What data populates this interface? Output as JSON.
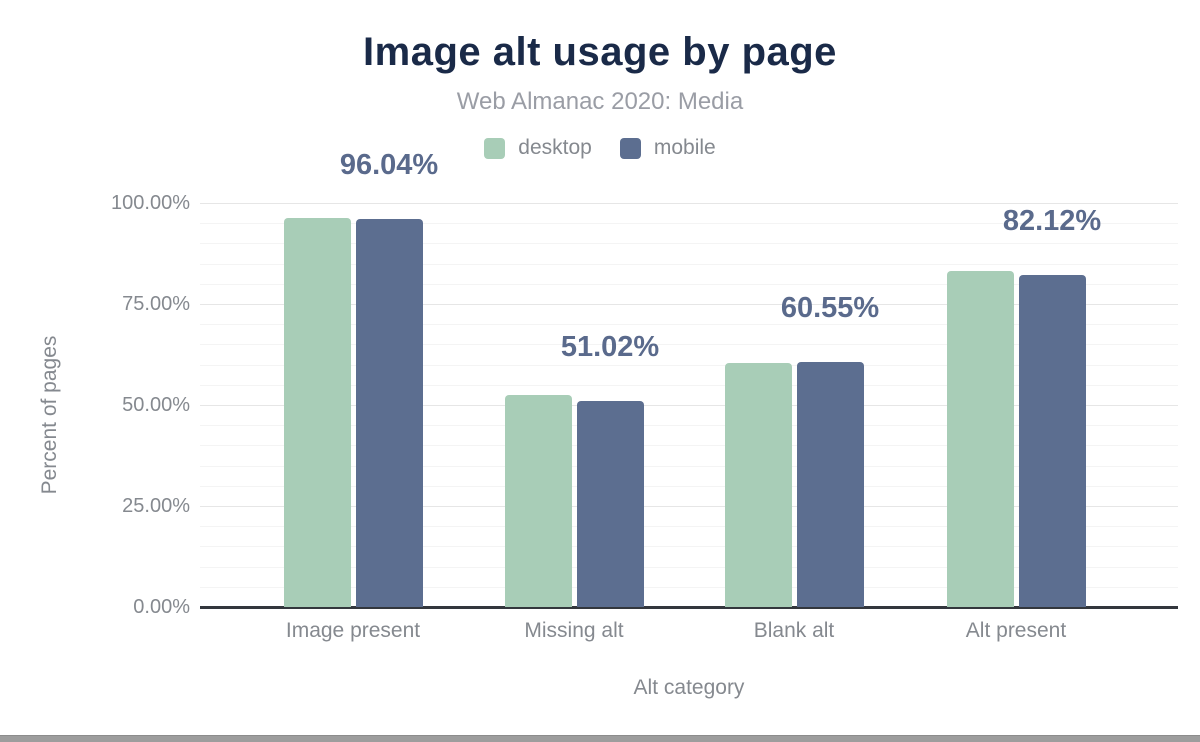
{
  "header": {
    "title": "Image alt usage by page",
    "subtitle": "Web Almanac 2020: Media"
  },
  "legend": {
    "items": [
      {
        "label": "desktop",
        "color": "#a8cdb7"
      },
      {
        "label": "mobile",
        "color": "#5c6e90"
      }
    ]
  },
  "axes": {
    "y_title": "Percent of pages",
    "x_title": "Alt category",
    "y_ticks": [
      "0.00%",
      "25.00%",
      "50.00%",
      "75.00%",
      "100.00%"
    ],
    "categories": [
      "Image present",
      "Missing alt",
      "Blank alt",
      "Alt present"
    ]
  },
  "colors": {
    "desktop_bar": "#a8cdb7",
    "mobile_bar": "#5c6e90",
    "title_text": "#1a2a48",
    "annotation_text": "#5a6a8c",
    "axis_text": "#85898f",
    "grid_minor": "#f4f4f4",
    "grid_major": "#e6e6e6",
    "axis_line": "#33373d",
    "bottom_bar": "#9d9d9d"
  },
  "chart_data": {
    "type": "bar",
    "title": "Image alt usage by page",
    "subtitle": "Web Almanac 2020: Media",
    "xlabel": "Alt category",
    "ylabel": "Percent of pages",
    "categories": [
      "Image present",
      "Missing alt",
      "Blank alt",
      "Alt present"
    ],
    "series": [
      {
        "name": "desktop",
        "values": [
          96.4,
          52.5,
          60.3,
          83.2
        ]
      },
      {
        "name": "mobile",
        "values": [
          96.04,
          51.02,
          60.55,
          82.12
        ]
      }
    ],
    "annotations": [
      "96.04%",
      "51.02%",
      "60.55%",
      "82.12%"
    ],
    "annotated_series": "mobile",
    "ylim": [
      0,
      100
    ],
    "y_tick_step_major": 25,
    "y_tick_step_minor": 5,
    "grid": true,
    "legend_position": "top"
  }
}
